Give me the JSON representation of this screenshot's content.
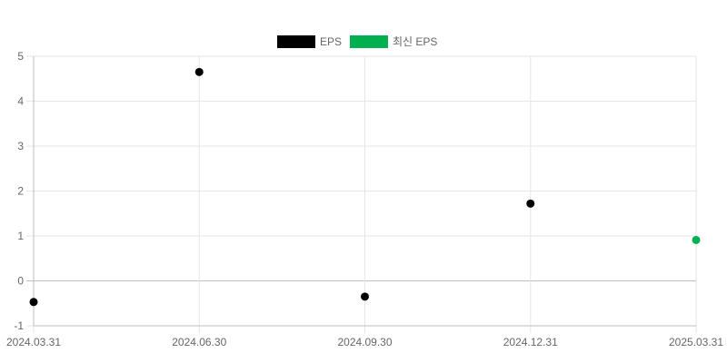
{
  "chart_data": {
    "type": "scatter",
    "x": [
      "2024.03.31",
      "2024.06.30",
      "2024.09.30",
      "2024.12.31",
      "2025.03.31"
    ],
    "series": [
      {
        "name": "EPS",
        "color": "#000000",
        "points": [
          {
            "x": "2024.03.31",
            "y": -0.47
          },
          {
            "x": "2024.06.30",
            "y": 4.65
          },
          {
            "x": "2024.09.30",
            "y": -0.35
          },
          {
            "x": "2024.12.31",
            "y": 1.72
          }
        ]
      },
      {
        "name": "최신 EPS",
        "color": "#00b050",
        "points": [
          {
            "x": "2025.03.31",
            "y": 0.91
          }
        ]
      }
    ],
    "ylim": [
      -1,
      5
    ],
    "yticks": [
      "5",
      "4",
      "3",
      "2",
      "1",
      "0",
      "-1"
    ],
    "grid": true,
    "legend_position": "top-center"
  }
}
